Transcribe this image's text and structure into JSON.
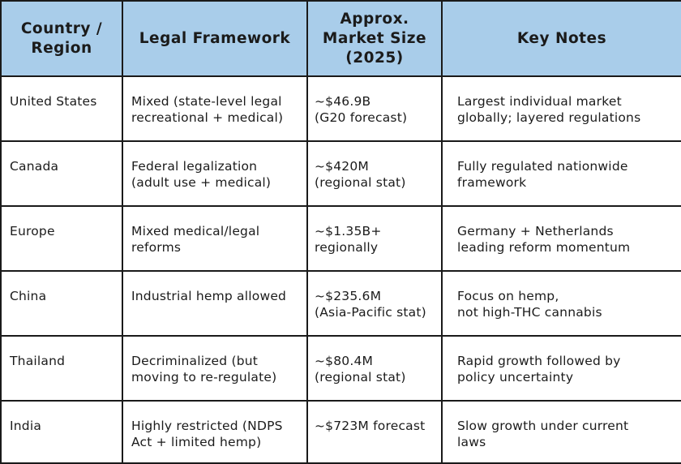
{
  "table": {
    "headers": [
      "Country /\nRegion",
      "Legal Framework",
      "Approx.\nMarket Size\n(2025)",
      "Key Notes"
    ],
    "rows": [
      [
        "United States",
        "Mixed (state-level legal\nrecreational + medical)",
        "~$46.9B\n(G20 forecast)",
        "Largest individual market\nglobally; layered regulations"
      ],
      [
        "Canada",
        "Federal legalization\n(adult use + medical)",
        "~$420M\n(regional stat)",
        "Fully regulated nationwide\nframework"
      ],
      [
        "Europe",
        "Mixed medical/legal\nreforms",
        "~$1.35B+\nregionally",
        "Germany + Netherlands\nleading reform momentum"
      ],
      [
        "China",
        "Industrial hemp allowed",
        "~$235.6M\n(Asia-Pacific stat)",
        "Focus on hemp,\nnot high-THC cannabis"
      ],
      [
        "Thailand",
        "Decriminalized (but\nmoving to re-regulate)",
        "~$80.4M\n(regional stat)",
        "Rapid growth followed by\npolicy uncertainty"
      ],
      [
        "India",
        "Highly restricted (NDPS\nAct + limited hemp)",
        "~$723M forecast",
        "Slow growth under current\nlaws"
      ]
    ]
  },
  "colors": {
    "header_bg": "#a9cdea",
    "border": "#1a1a1a",
    "text": "#1b1b1b"
  }
}
